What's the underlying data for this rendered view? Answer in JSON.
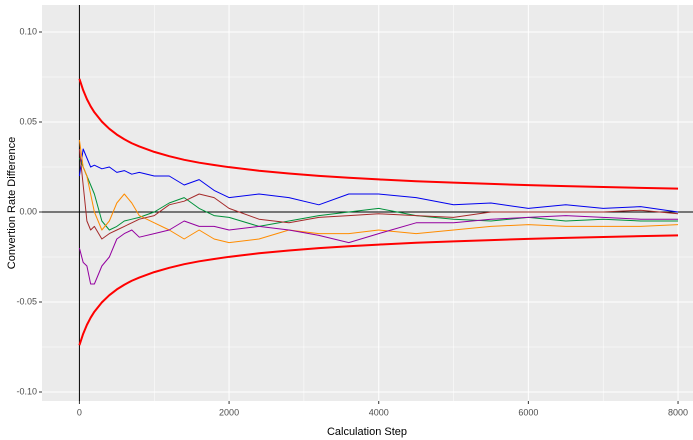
{
  "chart_data": {
    "type": "line",
    "x_label": "Calculation Step",
    "y_label": "Convertion Rate Difference",
    "x": [
      0,
      50,
      100,
      150,
      200,
      300,
      400,
      500,
      600,
      700,
      800,
      1000,
      1200,
      1400,
      1600,
      1800,
      2000,
      2400,
      2800,
      3200,
      3600,
      4000,
      4500,
      5000,
      5500,
      6000,
      6500,
      7000,
      7500,
      8000
    ],
    "series": [
      {
        "color": "#ff0000",
        "values": [
          0.074,
          0.0677,
          0.0627,
          0.0587,
          0.0554,
          0.0502,
          0.0462,
          0.043,
          0.0404,
          0.0382,
          0.0364,
          0.0334,
          0.031,
          0.029,
          0.0274,
          0.0261,
          0.0249,
          0.0229,
          0.0214,
          0.0201,
          0.019,
          0.0181,
          0.0171,
          0.0163,
          0.0156,
          0.0149,
          0.0144,
          0.0139,
          0.0134,
          0.013
        ]
      },
      {
        "color": "#ff0000",
        "values": [
          -0.074,
          -0.0677,
          -0.0627,
          -0.0587,
          -0.0554,
          -0.0502,
          -0.0462,
          -0.043,
          -0.0404,
          -0.0382,
          -0.0364,
          -0.0334,
          -0.031,
          -0.029,
          -0.0274,
          -0.0261,
          -0.0249,
          -0.0229,
          -0.0214,
          -0.0201,
          -0.019,
          -0.0181,
          -0.0171,
          -0.0163,
          -0.0156,
          -0.0149,
          -0.0144,
          -0.0139,
          -0.0134,
          -0.013
        ]
      },
      {
        "color": "#0000ee",
        "values": [
          0.02,
          0.035,
          0.03,
          0.025,
          0.026,
          0.024,
          0.025,
          0.022,
          0.023,
          0.021,
          0.022,
          0.02,
          0.02,
          0.015,
          0.018,
          0.012,
          0.008,
          0.01,
          0.008,
          0.004,
          0.01,
          0.01,
          0.008,
          0.004,
          0.005,
          0.002,
          0.004,
          0.002,
          0.003,
          0.0
        ]
      },
      {
        "color": "#00913a",
        "values": [
          0.03,
          0.025,
          0.02,
          0.015,
          0.01,
          -0.005,
          -0.01,
          -0.008,
          -0.005,
          -0.004,
          -0.003,
          0.0,
          0.005,
          0.008,
          0.002,
          -0.002,
          -0.003,
          -0.008,
          -0.005,
          -0.002,
          0.0,
          0.002,
          -0.002,
          -0.004,
          -0.005,
          -0.003,
          -0.005,
          -0.004,
          -0.005,
          -0.005
        ]
      },
      {
        "color": "#ff8c00",
        "values": [
          0.04,
          0.025,
          0.02,
          0.01,
          0.0,
          -0.01,
          -0.005,
          0.005,
          0.01,
          0.005,
          -0.002,
          -0.006,
          -0.01,
          -0.015,
          -0.01,
          -0.015,
          -0.017,
          -0.015,
          -0.01,
          -0.012,
          -0.012,
          -0.01,
          -0.012,
          -0.01,
          -0.008,
          -0.007,
          -0.008,
          -0.008,
          -0.008,
          -0.007
        ]
      },
      {
        "color": "#9400a0",
        "values": [
          -0.02,
          -0.028,
          -0.03,
          -0.04,
          -0.04,
          -0.03,
          -0.025,
          -0.015,
          -0.012,
          -0.01,
          -0.014,
          -0.012,
          -0.01,
          -0.005,
          -0.008,
          -0.008,
          -0.01,
          -0.008,
          -0.01,
          -0.013,
          -0.017,
          -0.012,
          -0.006,
          -0.006,
          -0.004,
          -0.003,
          -0.002,
          -0.003,
          -0.004,
          -0.004
        ]
      },
      {
        "color": "#a52a2a",
        "values": [
          0.035,
          0.015,
          -0.005,
          -0.01,
          -0.008,
          -0.015,
          -0.012,
          -0.01,
          -0.008,
          -0.006,
          -0.004,
          -0.002,
          0.004,
          0.006,
          0.01,
          0.008,
          0.002,
          -0.004,
          -0.006,
          -0.003,
          -0.002,
          -0.001,
          -0.002,
          -0.003,
          0.0,
          0.0,
          0.0,
          0.0,
          0.001,
          -0.001
        ]
      }
    ],
    "xlim": [
      -500,
      8200
    ],
    "xticks": [
      0,
      2000,
      4000,
      6000,
      8000
    ],
    "ylim": [
      -0.105,
      0.115
    ],
    "yticks": [
      {
        "value": -0.1,
        "label": "-0.10"
      },
      {
        "value": -0.05,
        "label": "-0.05"
      },
      {
        "value": 0,
        "label": "0.00"
      },
      {
        "value": 0.05,
        "label": "0.05"
      },
      {
        "value": 0.1,
        "label": "0.10"
      }
    ],
    "grid": true
  }
}
